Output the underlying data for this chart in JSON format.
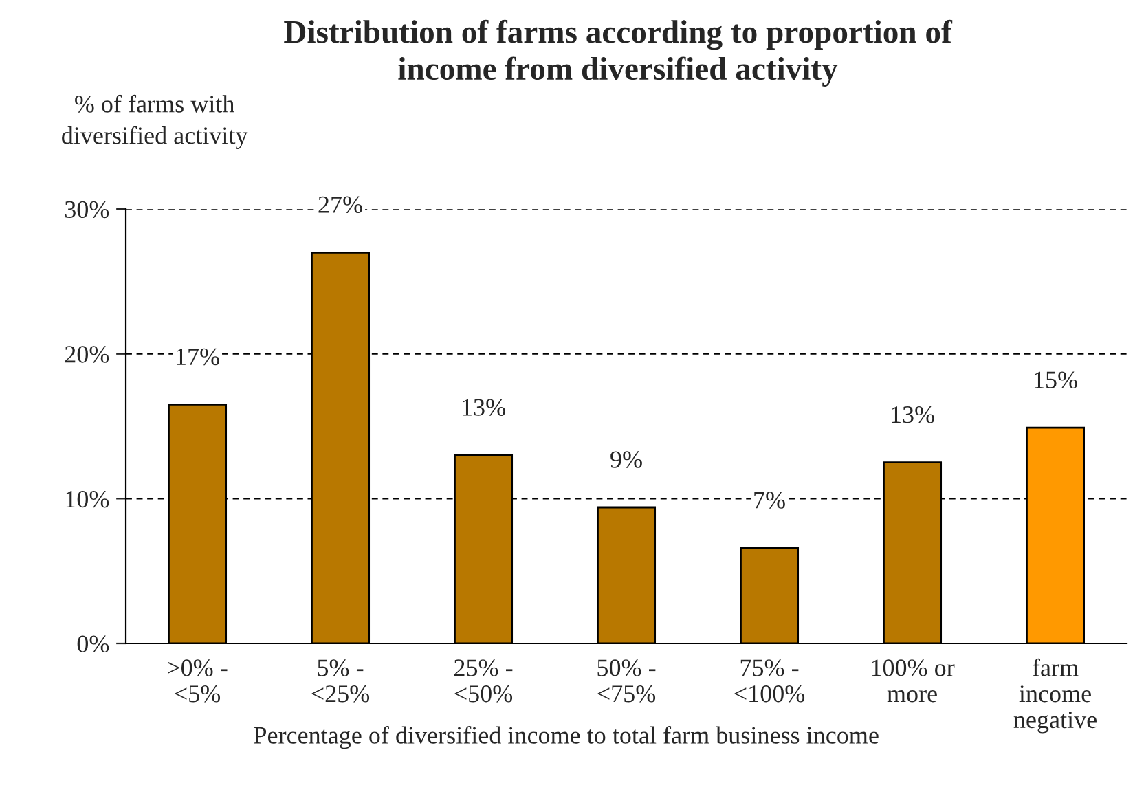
{
  "chart_data": {
    "type": "bar",
    "title": "Distribution of farms according to proportion of\nincome from diversified activity",
    "ylabel": "% of farms with\ndiversified activity",
    "xlabel": "Percentage of diversified income to total farm business income",
    "categories": [
      ">0% -\n<5%",
      "5% -\n<25%",
      "25% -\n<50%",
      "50% -\n<75%",
      "75% -\n<100%",
      "100% or\nmore",
      "farm\nincome\nnegative"
    ],
    "values": [
      16.5,
      27.0,
      13.0,
      9.4,
      6.6,
      12.5,
      14.9
    ],
    "value_labels": [
      "17%",
      "27%",
      "13%",
      "9%",
      "7%",
      "13%",
      "15%"
    ],
    "colors": [
      "#b87800",
      "#b87800",
      "#b87800",
      "#b87800",
      "#b87800",
      "#b87800",
      "#ff9900"
    ],
    "ylim": [
      0,
      30
    ],
    "yticks": [
      {
        "value": 0,
        "label": "0%"
      },
      {
        "value": 10,
        "label": "10%"
      },
      {
        "value": 20,
        "label": "20%"
      },
      {
        "value": 30,
        "label": "30%"
      }
    ],
    "grid": "y"
  }
}
